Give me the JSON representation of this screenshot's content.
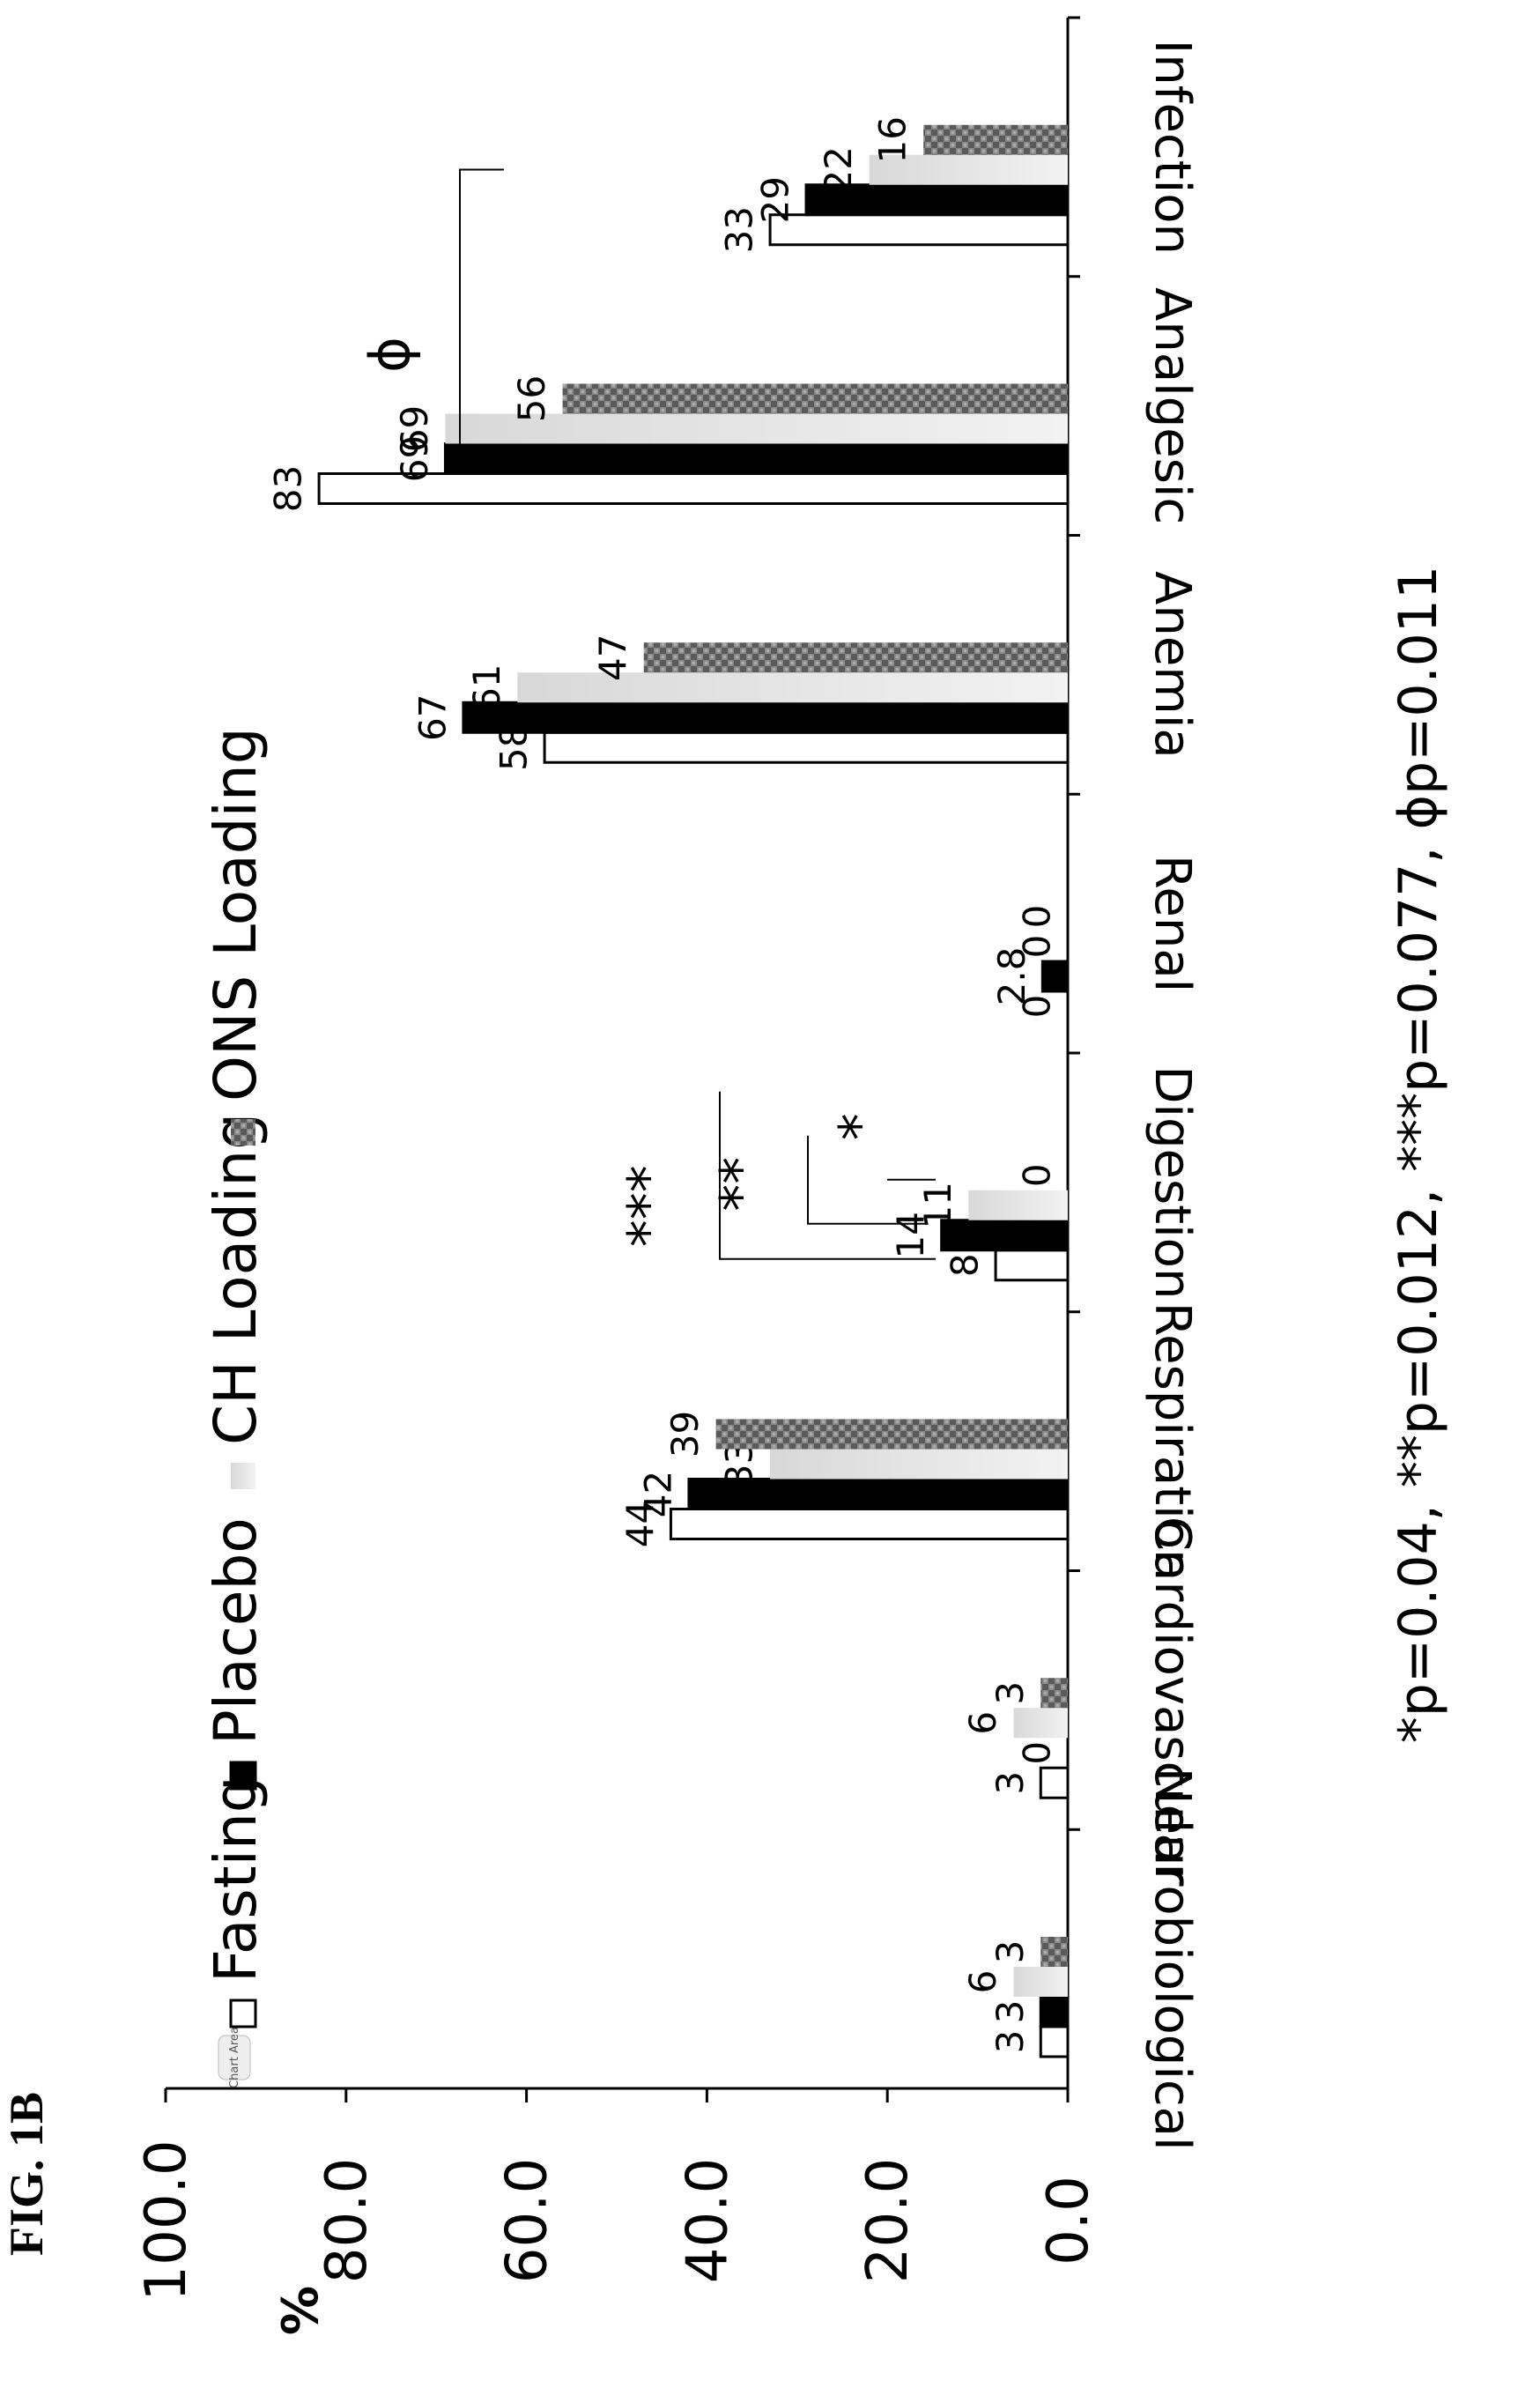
{
  "figure_label": "FIG. 1B",
  "chart_data": {
    "type": "bar",
    "ylabel": "%",
    "ylim": [
      0,
      100
    ],
    "yticks": [
      "0.0",
      "20.0",
      "40.0",
      "60.0",
      "80.0",
      "100.0"
    ],
    "chart_area_tag": "Chart Area",
    "categories": [
      "Neurobiological",
      "Cardiovascular",
      "Respiration",
      "Digestion",
      "Renal",
      "Anemia",
      "Analgesic",
      "Infection"
    ],
    "series": [
      {
        "name": "Fasting",
        "fill": "#ffffff",
        "values": [
          3,
          3,
          44,
          8,
          0,
          58,
          83,
          33
        ],
        "labels": [
          "3",
          "3",
          "44",
          "8",
          "0",
          "58",
          "83",
          "33"
        ]
      },
      {
        "name": "Placebo",
        "fill": "#000000",
        "values": [
          3,
          0,
          42,
          14,
          2.8,
          67,
          69,
          29
        ],
        "labels": [
          "3",
          "0",
          "42",
          "14",
          "2.8",
          "67",
          "69",
          "29"
        ]
      },
      {
        "name": "CH Loading",
        "fill": "#c9c9c9",
        "values": [
          6,
          6,
          33,
          11,
          0,
          61,
          69,
          22
        ],
        "labels": [
          "6",
          "6",
          "33",
          "11",
          "0",
          "61",
          "69",
          "22"
        ]
      },
      {
        "name": "ONS Loading",
        "fill": "#7a7a7a",
        "values": [
          3,
          3,
          39,
          0,
          0,
          47,
          56,
          16
        ],
        "labels": [
          "3",
          "3",
          "39",
          "0",
          "0",
          "47",
          "56",
          "16"
        ]
      }
    ],
    "annotations": [
      {
        "category": "Digestion",
        "text": "***"
      },
      {
        "category": "Digestion",
        "text": "**"
      },
      {
        "category": "Digestion",
        "text": "*"
      },
      {
        "category": "Analgesic",
        "text": "ɸ"
      }
    ],
    "footnote": "*p=0.04, **p=0.012, ***p=0.077, ɸp=0.011",
    "legend_position": "top"
  }
}
